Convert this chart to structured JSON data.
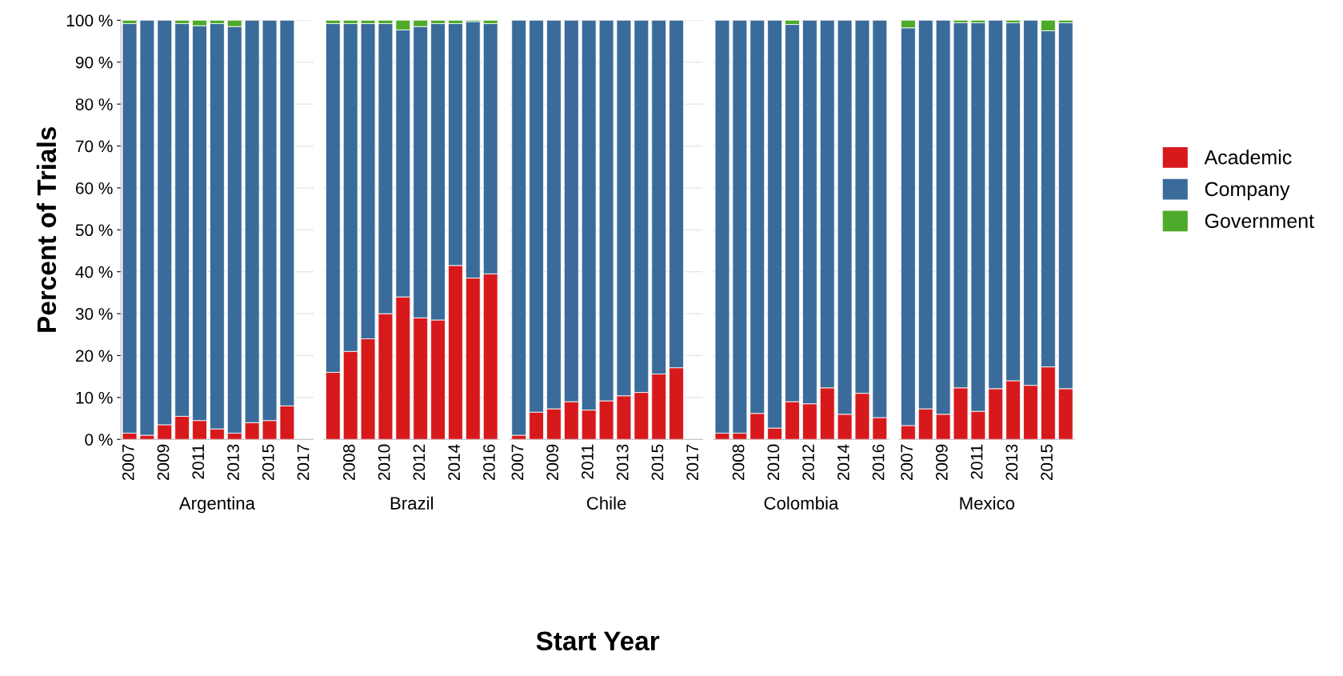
{
  "chart_data": [
    {
      "type": "bar",
      "stacked": true,
      "xlabel": "Argentina",
      "ylabel": "Percent of Trials",
      "ylim": [
        0,
        100
      ],
      "yticks": [
        {
          "value": 0,
          "label": "0 %"
        },
        {
          "value": 10,
          "label": "10 %"
        },
        {
          "value": 20,
          "label": "20 %"
        },
        {
          "value": 30,
          "label": "30 %"
        },
        {
          "value": 40,
          "label": "40 %"
        },
        {
          "value": 50,
          "label": "50 %"
        },
        {
          "value": 60,
          "label": "60 %"
        },
        {
          "value": 70,
          "label": "70 %"
        },
        {
          "value": 80,
          "label": "80 %"
        },
        {
          "value": 90,
          "label": "90 %"
        },
        {
          "value": 100,
          "label": "100 %"
        }
      ],
      "grid": "y",
      "categories": [
        "2007",
        null,
        "2009",
        null,
        "2011",
        null,
        "2013",
        null,
        "2015",
        null,
        "2017"
      ],
      "series": [
        {
          "color": "#d7191c",
          "values": [
            1.5,
            1,
            3.5,
            5.5,
            4.5,
            2.5,
            1.5,
            4,
            4.5,
            8,
            null
          ]
        },
        {
          "color": "#3a6b9a",
          "values": [
            97.7,
            99,
            96.5,
            93.7,
            94.2,
            96.7,
            97,
            96,
            95.5,
            92,
            null
          ]
        },
        {
          "color": "#4daa2a",
          "values": [
            0.8,
            0,
            0,
            0.8,
            1.3,
            0.8,
            1.5,
            0,
            0,
            0,
            null
          ]
        }
      ]
    },
    {
      "type": "bar",
      "stacked": true,
      "xlabel": "Brazil",
      "ylim": [
        0,
        100
      ],
      "tick_labels": "x",
      "grid": "y",
      "categories": [
        null,
        "2008",
        null,
        "2010",
        null,
        "2012",
        null,
        "2014",
        null,
        "2016"
      ],
      "series": [
        {
          "color": "#d7191c",
          "values": [
            16,
            21,
            24,
            30,
            34,
            29,
            28.5,
            41.5,
            38.5,
            39.5
          ]
        },
        {
          "color": "#3a6b9a",
          "values": [
            83.2,
            78.2,
            75.2,
            69.2,
            63.7,
            69.5,
            70.7,
            57.7,
            61.2,
            59.7
          ]
        },
        {
          "color": "#4daa2a",
          "values": [
            0.8,
            0.8,
            0.8,
            0.8,
            2.3,
            1.5,
            0.8,
            0.8,
            0.3,
            0.8
          ]
        }
      ]
    },
    {
      "type": "bar",
      "stacked": true,
      "xlabel": "Chile",
      "ylim": [
        0,
        100
      ],
      "tick_labels": "x",
      "grid": "y",
      "annotations": [
        "Start Year"
      ],
      "categories": [
        "2007",
        null,
        "2009",
        null,
        "2011",
        null,
        "2013",
        null,
        "2015",
        null,
        "2017"
      ],
      "series": [
        {
          "color": "#d7191c",
          "values": [
            1,
            6.5,
            7.3,
            9,
            7,
            9.2,
            10.4,
            11.2,
            15.6,
            17.1,
            null
          ]
        },
        {
          "color": "#3a6b9a",
          "values": [
            99,
            93.5,
            92.7,
            91,
            93,
            90.8,
            89.6,
            88.8,
            84.4,
            82.9,
            null
          ]
        },
        {
          "color": "#4daa2a",
          "values": [
            0,
            0,
            0,
            0,
            0,
            0,
            0,
            0,
            0,
            0,
            null
          ]
        }
      ]
    },
    {
      "type": "bar",
      "stacked": true,
      "xlabel": "Colombia",
      "ylim": [
        0,
        100
      ],
      "tick_labels": "x",
      "grid": "y",
      "categories": [
        null,
        "2008",
        null,
        "2010",
        null,
        "2012",
        null,
        "2014",
        null,
        "2016"
      ],
      "series": [
        {
          "color": "#d7191c",
          "values": [
            1.5,
            1.5,
            6.2,
            2.7,
            9,
            8.5,
            12.3,
            6,
            11,
            5.2
          ]
        },
        {
          "color": "#3a6b9a",
          "values": [
            98.5,
            98.5,
            93.8,
            97.3,
            90,
            91.5,
            87.7,
            94,
            89,
            94.8
          ]
        },
        {
          "color": "#4daa2a",
          "values": [
            0,
            0,
            0,
            0,
            1,
            0,
            0,
            0,
            0,
            0
          ]
        }
      ]
    },
    {
      "type": "bar",
      "stacked": true,
      "xlabel": "Mexico",
      "ylim": [
        0,
        100
      ],
      "tick_labels": "x",
      "grid": "y",
      "legend": "right",
      "categories": [
        "2007",
        null,
        "2009",
        null,
        "2011",
        null,
        "2013",
        null,
        "2015",
        null
      ],
      "series": [
        {
          "name": "Academic",
          "color": "#d7191c",
          "values": [
            3.3,
            7.3,
            6,
            12.3,
            6.7,
            12.1,
            14,
            12.9,
            17.3,
            12.1
          ]
        },
        {
          "name": "Company",
          "color": "#3a6b9a",
          "values": [
            94.9,
            92.7,
            94,
            87.1,
            92.7,
            87.9,
            85.4,
            87.1,
            80.2,
            87.3
          ]
        },
        {
          "name": "Government",
          "color": "#4daa2a",
          "values": [
            1.8,
            0,
            0,
            0.6,
            0.6,
            0,
            0.6,
            0,
            2.5,
            0.6
          ]
        }
      ]
    }
  ]
}
